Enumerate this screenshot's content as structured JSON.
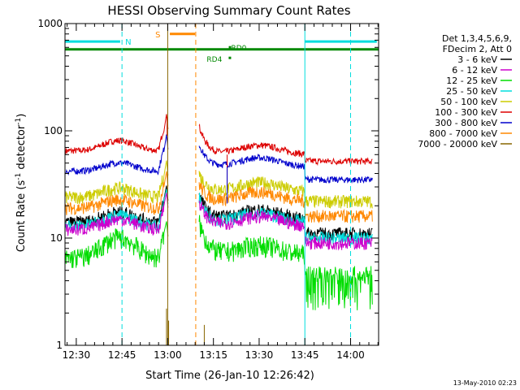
{
  "chart_data": {
    "type": "line",
    "title": "HESSI Observing Summary Count Rates",
    "xlabel": "Start Time (26-Jan-10 12:26:42)",
    "ylabel_main": "Count Rate (s",
    "ylabel_sup1": "-1",
    "ylabel_mid": " detector",
    "ylabel_sup2": "-1",
    "ylabel_end": ")",
    "yscale": "log",
    "ylim": [
      1,
      1000
    ],
    "xlim_min": [
      -3.7,
      99.2
    ],
    "x_ticks": [
      {
        "t": 0,
        "label": "12:30"
      },
      {
        "t": 15,
        "label": "12:45"
      },
      {
        "t": 30,
        "label": "13:00"
      },
      {
        "t": 45,
        "label": "13:15"
      },
      {
        "t": 60,
        "label": "13:30"
      },
      {
        "t": 75,
        "label": "13:45"
      },
      {
        "t": 90,
        "label": "14:00"
      }
    ],
    "y_ticks": [
      {
        "v": 1,
        "label": "1"
      },
      {
        "v": 10,
        "label": "10"
      },
      {
        "v": 100,
        "label": "100"
      },
      {
        "v": 1000,
        "label": "1000"
      }
    ],
    "legend_header": [
      "Det 1,3,4,5,6,9,",
      "FDecim 2, Att 0"
    ],
    "series": [
      {
        "name": "3 - 6 keV",
        "color": "#000000",
        "key": "e1"
      },
      {
        "name": "6 - 12 keV",
        "color": "#cc00cc",
        "key": "e2"
      },
      {
        "name": "12 - 25 keV",
        "color": "#00dd00",
        "key": "e3"
      },
      {
        "name": "25 - 50 keV",
        "color": "#00dddd",
        "key": "e4"
      },
      {
        "name": "50 - 100 keV",
        "color": "#cccc00",
        "key": "e5"
      },
      {
        "name": "100 - 300 keV",
        "color": "#dd0000",
        "key": "e6"
      },
      {
        "name": "300 - 800 keV",
        "color": "#0000cc",
        "key": "e7"
      },
      {
        "name": "800 - 7000 keV",
        "color": "#ff8800",
        "key": "e8"
      },
      {
        "name": "7000 - 20000 keV",
        "color": "#886600",
        "key": "e9"
      }
    ],
    "series_levels": [
      {
        "key": "e6",
        "pre": 65,
        "bump": 1.25,
        "post_peak": 110,
        "post": 60,
        "end": 52
      },
      {
        "key": "e7",
        "pre": 42,
        "bump": 1.2,
        "post_peak": 75,
        "post": 46,
        "end": 35
      },
      {
        "key": "e5",
        "pre": 24,
        "bump": 1.22,
        "post_peak": 40,
        "post": 27,
        "end": 22
      },
      {
        "key": "e8",
        "pre": 19,
        "bump": 1.2,
        "post_peak": 32,
        "post": 22,
        "end": 16
      },
      {
        "key": "e1",
        "pre": 14,
        "bump": 1.25,
        "post_peak": 26,
        "post": 15,
        "end": 11
      },
      {
        "key": "e4",
        "pre": 13,
        "bump": 1.25,
        "post_peak": 24,
        "post": 14,
        "end": 10
      },
      {
        "key": "e2",
        "pre": 12,
        "bump": 1.25,
        "post_peak": 22,
        "post": 13,
        "end": 9
      },
      {
        "key": "e3",
        "pre": 6.5,
        "bump": 1.55,
        "post_peak": 14,
        "post": 7,
        "end": 4.5
      }
    ],
    "gap_min": [
      30.2,
      39.2
    ],
    "annotations": {
      "night_bars": [
        {
          "t0": -3.7,
          "t1": 15,
          "label": "N"
        },
        {
          "t0": 75,
          "t1": 99.2,
          "label": ""
        }
      ],
      "saa_bar": {
        "t0": 30.2,
        "t1": 39.2,
        "label": "S"
      },
      "attenuator_line_label": "RD0",
      "attenuator_line_label2": "RD4",
      "vertical_cyan_lines": [
        15,
        75,
        90
      ],
      "vertical_orange_lines": [
        30,
        39.2
      ]
    },
    "footer": "13-May-2010 02:23"
  }
}
